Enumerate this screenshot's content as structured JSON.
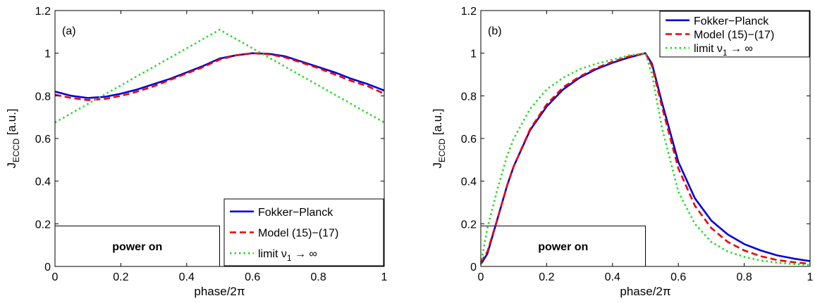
{
  "chart_data": [
    {
      "type": "line",
      "panel_label": "(a)",
      "xlabel": "phase/2π",
      "ylabel": {
        "main": "J",
        "sub": "ECCD",
        "rest": " [a.u.]"
      },
      "xlim": [
        0,
        1
      ],
      "ylim": [
        0,
        1.2
      ],
      "xticks": [
        "0",
        "0.2",
        "0.4",
        "0.6",
        "0.8",
        "1"
      ],
      "yticks": [
        "0",
        "0.2",
        "0.4",
        "0.6",
        "0.8",
        "1",
        "1.2"
      ],
      "legend_position": "bottom-right",
      "annotation": {
        "text": "power on",
        "x_range": [
          0,
          0.5
        ],
        "y_range": [
          0,
          0.19
        ]
      },
      "series": [
        {
          "name": "Fokker−Planck",
          "color": "#0000dd",
          "style": "solid",
          "x": [
            0,
            0.05,
            0.1,
            0.15,
            0.2,
            0.25,
            0.3,
            0.35,
            0.4,
            0.45,
            0.5,
            0.55,
            0.6,
            0.65,
            0.7,
            0.75,
            0.8,
            0.85,
            0.9,
            0.95,
            1.0
          ],
          "y": [
            0.82,
            0.8,
            0.79,
            0.795,
            0.81,
            0.83,
            0.855,
            0.88,
            0.91,
            0.94,
            0.975,
            0.99,
            1.0,
            0.997,
            0.985,
            0.96,
            0.935,
            0.91,
            0.88,
            0.855,
            0.825
          ]
        },
        {
          "name": "Model (15)−(17)",
          "color": "#ee0000",
          "style": "dashed",
          "x": [
            0,
            0.05,
            0.1,
            0.15,
            0.2,
            0.25,
            0.3,
            0.35,
            0.4,
            0.45,
            0.5,
            0.55,
            0.6,
            0.65,
            0.7,
            0.75,
            0.8,
            0.85,
            0.9,
            0.95,
            1.0
          ],
          "y": [
            0.805,
            0.79,
            0.78,
            0.785,
            0.8,
            0.82,
            0.845,
            0.875,
            0.905,
            0.935,
            0.97,
            0.99,
            1.0,
            0.995,
            0.98,
            0.955,
            0.93,
            0.9,
            0.87,
            0.845,
            0.81
          ]
        },
        {
          "name": "limit ν",
          "name_sub": "1",
          "name_rest": " → ∞",
          "color": "#22dd22",
          "style": "dotted",
          "x": [
            0,
            0.5,
            1.0
          ],
          "y": [
            0.675,
            1.11,
            0.675
          ]
        }
      ]
    },
    {
      "type": "line",
      "panel_label": "(b)",
      "xlabel": "phase/2π",
      "ylabel": {
        "main": "J",
        "sub": "ECCD",
        "rest": " [a.u.]"
      },
      "xlim": [
        0,
        1
      ],
      "ylim": [
        0,
        1.2
      ],
      "xticks": [
        "0",
        "0.2",
        "0.4",
        "0.6",
        "0.8",
        "1"
      ],
      "yticks": [
        "0",
        "0.2",
        "0.4",
        "0.6",
        "0.8",
        "1",
        "1.2"
      ],
      "legend_position": "top-right",
      "annotation": {
        "text": "power on",
        "x_range": [
          0,
          0.5
        ],
        "y_range": [
          0,
          0.19
        ]
      },
      "series": [
        {
          "name": "Fokker−Planck",
          "color": "#0000dd",
          "style": "solid",
          "x": [
            0,
            0.02,
            0.05,
            0.08,
            0.1,
            0.15,
            0.2,
            0.25,
            0.3,
            0.35,
            0.4,
            0.45,
            0.5,
            0.52,
            0.55,
            0.6,
            0.65,
            0.7,
            0.75,
            0.8,
            0.85,
            0.9,
            0.95,
            1.0
          ],
          "y": [
            0.01,
            0.06,
            0.22,
            0.38,
            0.47,
            0.64,
            0.75,
            0.83,
            0.885,
            0.925,
            0.955,
            0.98,
            1.0,
            0.95,
            0.77,
            0.49,
            0.32,
            0.215,
            0.15,
            0.105,
            0.075,
            0.052,
            0.037,
            0.025
          ]
        },
        {
          "name": "Model (15)−(17)",
          "color": "#ee0000",
          "style": "dashed",
          "x": [
            0,
            0.02,
            0.05,
            0.08,
            0.1,
            0.15,
            0.2,
            0.25,
            0.3,
            0.35,
            0.4,
            0.45,
            0.5,
            0.52,
            0.55,
            0.6,
            0.65,
            0.7,
            0.75,
            0.8,
            0.85,
            0.9,
            0.95,
            1.0
          ],
          "y": [
            0.02,
            0.07,
            0.22,
            0.38,
            0.47,
            0.645,
            0.76,
            0.84,
            0.89,
            0.93,
            0.96,
            0.985,
            1.0,
            0.94,
            0.75,
            0.46,
            0.285,
            0.18,
            0.115,
            0.075,
            0.048,
            0.03,
            0.02,
            0.012
          ]
        },
        {
          "name": "limit ν",
          "name_sub": "1",
          "name_rest": " → ∞",
          "color": "#22dd22",
          "style": "dotted",
          "x": [
            0,
            0.02,
            0.05,
            0.08,
            0.1,
            0.15,
            0.2,
            0.25,
            0.3,
            0.35,
            0.4,
            0.45,
            0.5,
            0.52,
            0.55,
            0.6,
            0.65,
            0.7,
            0.75,
            0.8,
            0.85,
            0.9,
            0.95,
            1.0
          ],
          "y": [
            0.01,
            0.18,
            0.36,
            0.52,
            0.6,
            0.74,
            0.83,
            0.885,
            0.925,
            0.95,
            0.97,
            0.99,
            1.0,
            0.9,
            0.65,
            0.35,
            0.2,
            0.115,
            0.07,
            0.045,
            0.028,
            0.018,
            0.011,
            0.007
          ]
        }
      ]
    }
  ]
}
